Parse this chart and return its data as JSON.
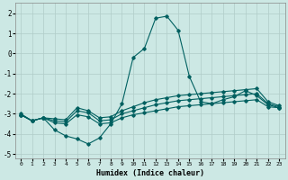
{
  "xlabel": "Humidex (Indice chaleur)",
  "ylabel": "",
  "bg_color": "#cce8e4",
  "grid_color": "#b0ccc8",
  "line_color": "#006060",
  "xlim": [
    -0.5,
    23.5
  ],
  "ylim": [
    -5.2,
    2.5
  ],
  "yticks": [
    -5,
    -4,
    -3,
    -2,
    -1,
    0,
    1,
    2
  ],
  "xticks": [
    0,
    1,
    2,
    3,
    4,
    5,
    6,
    7,
    8,
    9,
    10,
    11,
    12,
    13,
    14,
    15,
    16,
    17,
    18,
    19,
    20,
    21,
    22,
    23
  ],
  "lines": [
    {
      "x": [
        0,
        1,
        2,
        3,
        4,
        5,
        6,
        7,
        8,
        9,
        10,
        11,
        12,
        13,
        14,
        15,
        16,
        17,
        18,
        19,
        20,
        21,
        22,
        23
      ],
      "y": [
        -3.0,
        -3.35,
        -3.2,
        -3.8,
        -4.1,
        -4.25,
        -4.5,
        -4.2,
        -3.5,
        -2.5,
        -0.2,
        0.25,
        1.75,
        1.85,
        1.15,
        -1.15,
        -2.4,
        -2.5,
        -2.3,
        -2.15,
        -1.85,
        -2.1,
        -2.55,
        -2.7
      ]
    },
    {
      "x": [
        0,
        1,
        2,
        3,
        4,
        5,
        6,
        7,
        8,
        9,
        10,
        11,
        12,
        13,
        14,
        15,
        16,
        17,
        18,
        19,
        20,
        21,
        22,
        23
      ],
      "y": [
        -3.05,
        -3.35,
        -3.2,
        -3.45,
        -3.5,
        -3.05,
        -3.15,
        -3.5,
        -3.45,
        -3.2,
        -3.05,
        -2.95,
        -2.85,
        -2.75,
        -2.65,
        -2.6,
        -2.55,
        -2.5,
        -2.45,
        -2.4,
        -2.35,
        -2.3,
        -2.65,
        -2.7
      ]
    },
    {
      "x": [
        0,
        1,
        2,
        3,
        4,
        5,
        6,
        7,
        8,
        9,
        10,
        11,
        12,
        13,
        14,
        15,
        16,
        17,
        18,
        19,
        20,
        21,
        22,
        23
      ],
      "y": [
        -3.05,
        -3.35,
        -3.2,
        -3.35,
        -3.4,
        -2.85,
        -2.95,
        -3.35,
        -3.3,
        -3.0,
        -2.85,
        -2.7,
        -2.55,
        -2.45,
        -2.35,
        -2.3,
        -2.25,
        -2.2,
        -2.15,
        -2.1,
        -2.05,
        -2.0,
        -2.5,
        -2.65
      ]
    },
    {
      "x": [
        0,
        1,
        2,
        3,
        4,
        5,
        6,
        7,
        8,
        9,
        10,
        11,
        12,
        13,
        14,
        15,
        16,
        17,
        18,
        19,
        20,
        21,
        22,
        23
      ],
      "y": [
        -3.05,
        -3.35,
        -3.2,
        -3.25,
        -3.3,
        -2.7,
        -2.85,
        -3.2,
        -3.15,
        -2.85,
        -2.65,
        -2.45,
        -2.3,
        -2.2,
        -2.1,
        -2.05,
        -2.0,
        -1.95,
        -1.9,
        -1.85,
        -1.8,
        -1.75,
        -2.4,
        -2.6
      ]
    }
  ]
}
